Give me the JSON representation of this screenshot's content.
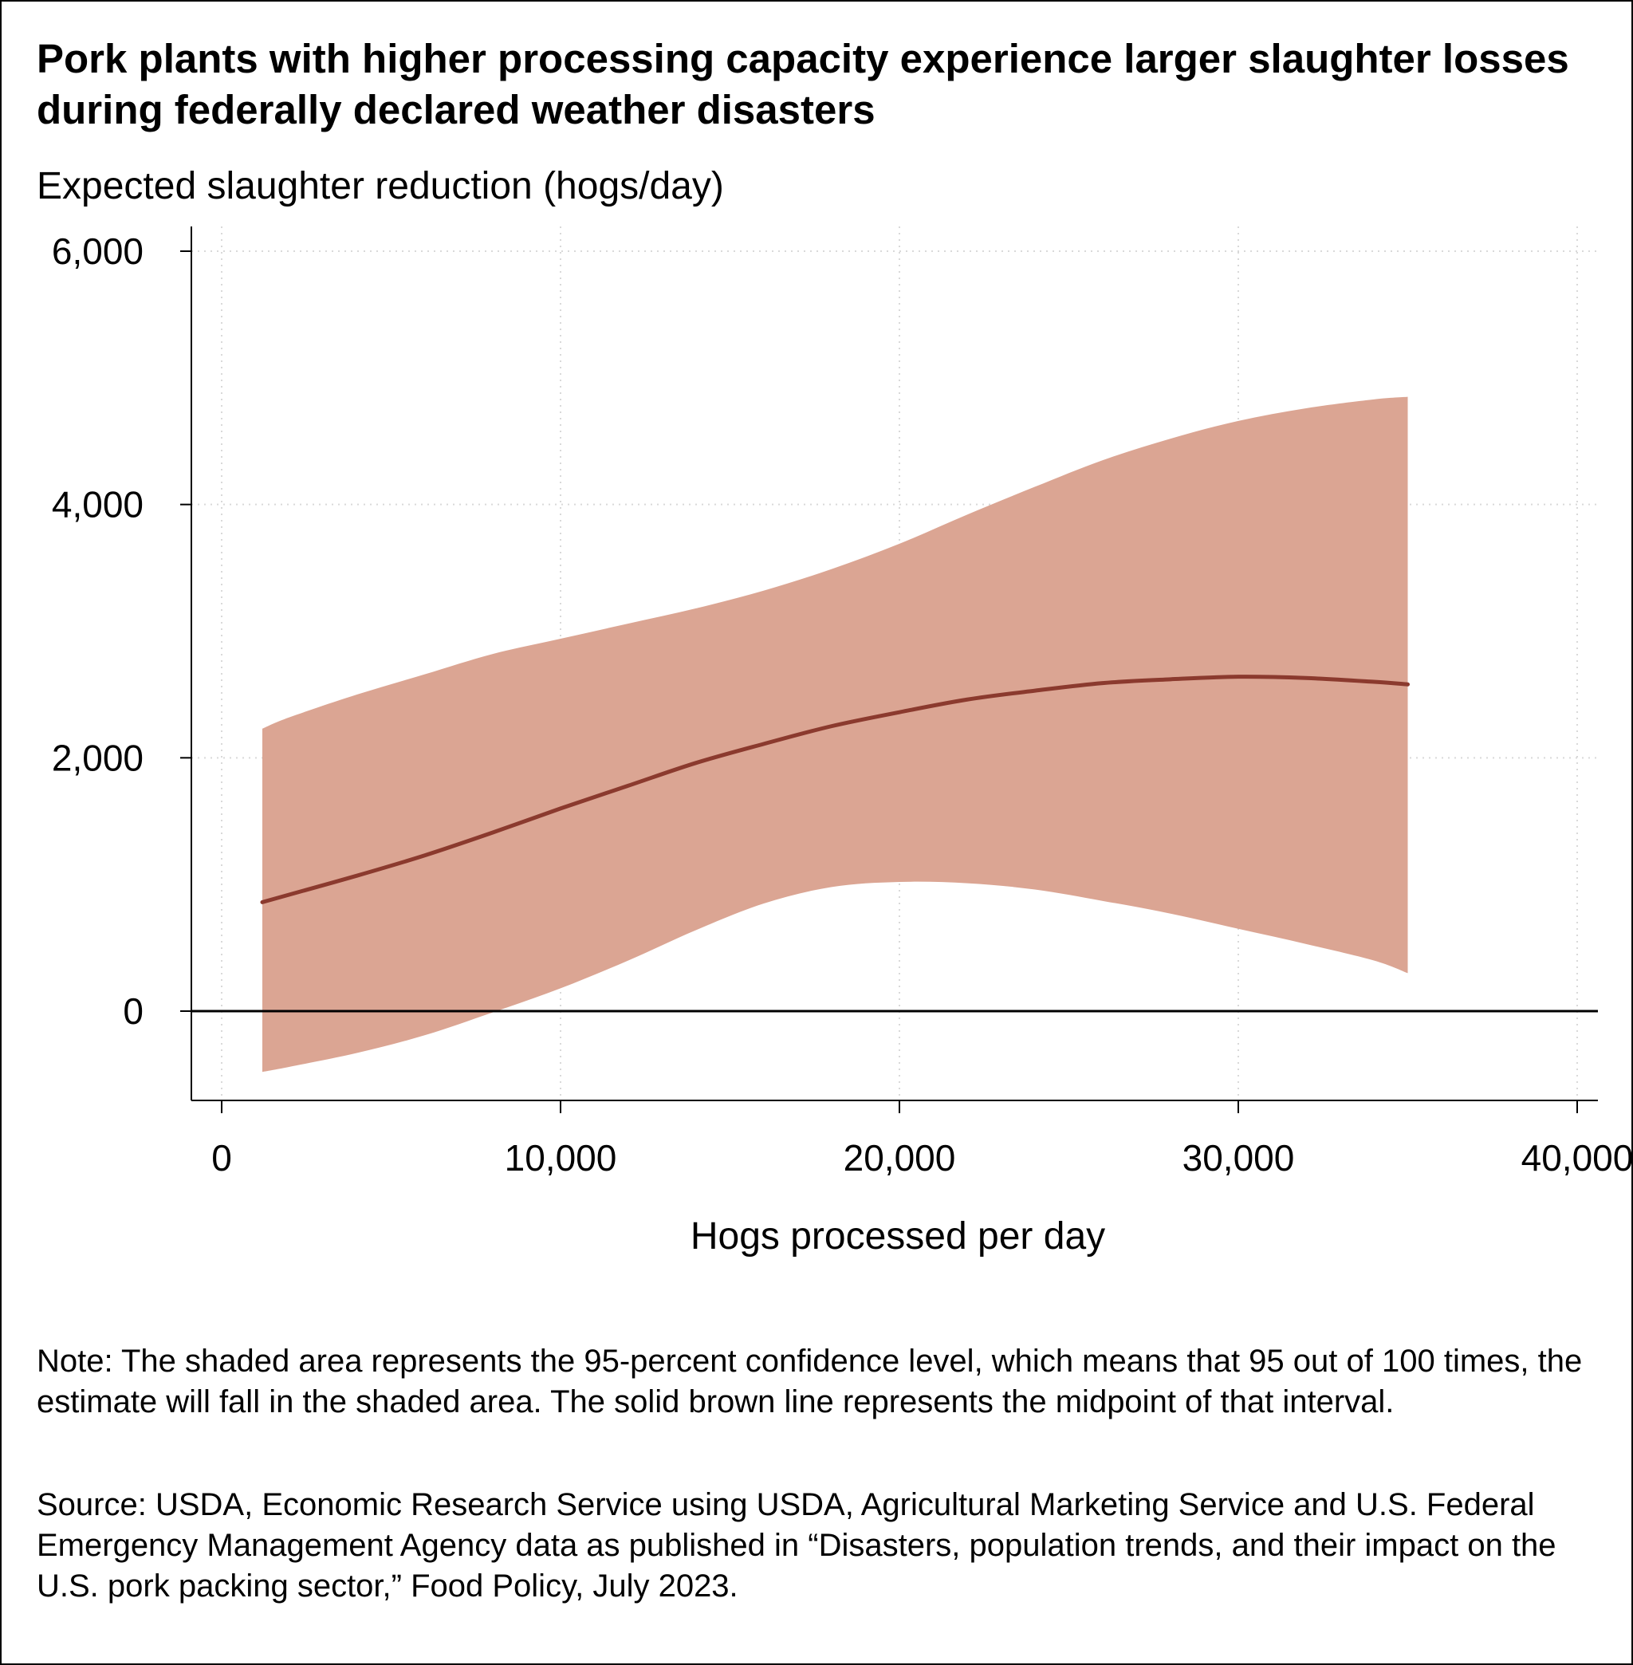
{
  "title": "Pork plants with higher processing capacity experience larger slaughter losses during federally declared weather disasters",
  "note": "Note: The shaded area represents the 95-percent confidence level, which means that 95 out of 100 times, the estimate will fall in the shaded area. The solid brown line represents the midpoint of that interval.",
  "source": "Source: USDA, Economic Research Service using USDA, Agricultural Marketing Service and U.S. Federal Emergency Management Agency data as published in “Disasters, population trends, and their impact on the U.S. pork packing sector,” Food Policy, July 2023.",
  "colors": {
    "band": "#dba593",
    "line": "#8b3a2e",
    "axis": "#000000",
    "grid": "#d9d9d9"
  },
  "chart_data": {
    "type": "line",
    "title": "Pork plants with higher processing capacity experience larger slaughter losses during federally declared weather disasters",
    "xlabel": "Hogs processed per day",
    "ylabel": "Expected slaughter reduction (hogs/day)",
    "xlim": [
      0,
      40000
    ],
    "ylim": [
      -700,
      6000
    ],
    "xticks": [
      0,
      10000,
      20000,
      30000,
      40000
    ],
    "xtick_labels": [
      "0",
      "10,000",
      "20,000",
      "30,000",
      "40,000"
    ],
    "yticks": [
      0,
      2000,
      4000,
      6000
    ],
    "ytick_labels": [
      "0",
      "2,000",
      "4,000",
      "6,000"
    ],
    "grid": true,
    "reference_line_y": 0,
    "x": [
      1200,
      2000,
      4000,
      6000,
      8000,
      10000,
      12000,
      14000,
      16000,
      18000,
      20000,
      22000,
      24000,
      26000,
      28000,
      30000,
      32000,
      34000,
      35000
    ],
    "series": [
      {
        "values": [
          860,
          920,
          1070,
          1230,
          1410,
          1600,
          1780,
          1960,
          2110,
          2250,
          2360,
          2460,
          2530,
          2590,
          2620,
          2640,
          2630,
          2600,
          2580
        ]
      }
    ],
    "confidence_band": {
      "lower": [
        -480,
        -440,
        -330,
        -190,
        -10,
        180,
        400,
        640,
        850,
        980,
        1020,
        1010,
        960,
        870,
        770,
        650,
        530,
        400,
        300
      ],
      "upper": [
        2230,
        2320,
        2500,
        2660,
        2820,
        2940,
        3060,
        3180,
        3320,
        3490,
        3690,
        3920,
        4140,
        4350,
        4520,
        4660,
        4760,
        4830,
        4850
      ]
    }
  }
}
